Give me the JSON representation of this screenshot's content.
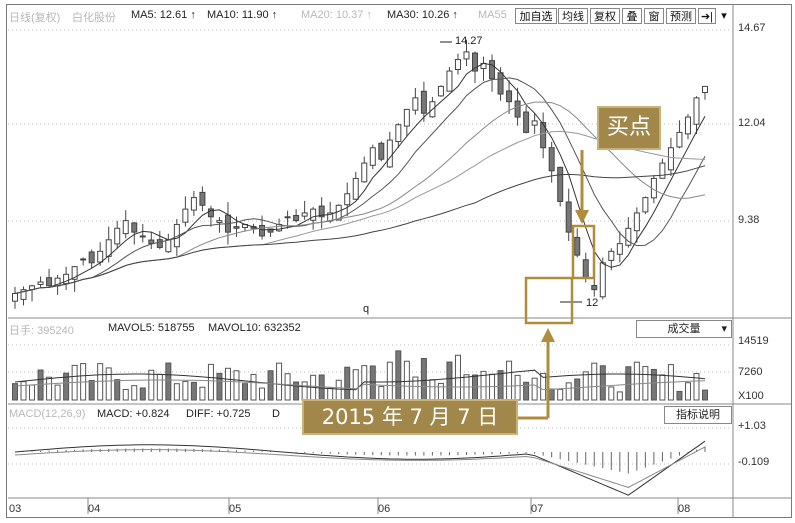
{
  "header": {
    "period_label": "日线(复权)",
    "stock_name": "白化股份",
    "ma5": "MA5: 12.61 ↑",
    "ma10": "MA10: 11.90 ↑",
    "ma20": "MA20: 10.37 ↑",
    "ma30": "MA30: 10.26 ↑",
    "ma55": "MA55"
  },
  "toolbar": {
    "add_watch": "加自选",
    "ma_line": "均线",
    "adjust": "复权",
    "overlay": "叠",
    "window": "窗",
    "forecast": "预测",
    "arrow": "➔|",
    "dropdown": "▾"
  },
  "price_axis": [
    "14.67",
    "12.04",
    "9.38"
  ],
  "annotations": {
    "high": "14.27",
    "low": "12",
    "buy_point": "买点",
    "date_label": "2015 年 7 月 7 日"
  },
  "volume": {
    "label": "日手: 395240",
    "mavol5": "MAVOL5: 518755",
    "mavol10": "MAVOL10: 632352",
    "selector": "成交量",
    "axis": [
      "14519",
      "7260"
    ],
    "unit": "X100"
  },
  "macd": {
    "label": "MACD(12,26,9)",
    "macd_val": "MACD: +0.824",
    "diff_val": "DIFF: +0.725",
    "dea_short": "D",
    "help_button": "指标说明",
    "axis": [
      "+1.03",
      "-0.109"
    ]
  },
  "xaxis": [
    "03",
    "04",
    "05",
    "06",
    "07",
    "08"
  ],
  "markers": {
    "q": "q"
  },
  "colors": {
    "candle_up": "#555555",
    "candle_down": "#888888",
    "highlight": "#b08d3c",
    "annotation_bg": "#a1884a"
  },
  "chart_data": {
    "type": "candlestick",
    "price_series_close": [
      7.8,
      7.9,
      8.0,
      8.1,
      8.0,
      8.2,
      8.3,
      8.5,
      8.7,
      8.6,
      8.9,
      9.2,
      9.5,
      9.7,
      9.4,
      9.3,
      9.1,
      9.0,
      9.2,
      9.6,
      10.0,
      10.3,
      10.1,
      9.8,
      9.7,
      9.4,
      9.5,
      9.6,
      9.5,
      9.3,
      9.4,
      9.6,
      9.8,
      9.7,
      9.9,
      10.0,
      9.8,
      9.9,
      10.1,
      10.4,
      10.8,
      11.2,
      11.6,
      11.3,
      11.8,
      12.2,
      12.6,
      12.9,
      12.5,
      12.8,
      13.2,
      13.6,
      13.9,
      14.1,
      13.6,
      13.8,
      13.4,
      13.0,
      12.8,
      12.4,
      12.0,
      12.3,
      11.6,
      11.0,
      10.2,
      9.4,
      8.8,
      8.2,
      7.9,
      8.6,
      8.9,
      9.1,
      9.5,
      9.9,
      10.3,
      10.8,
      11.2,
      11.6,
      12.0,
      12.4,
      12.9,
      13.2
    ],
    "ylim": [
      7.5,
      14.67
    ]
  }
}
